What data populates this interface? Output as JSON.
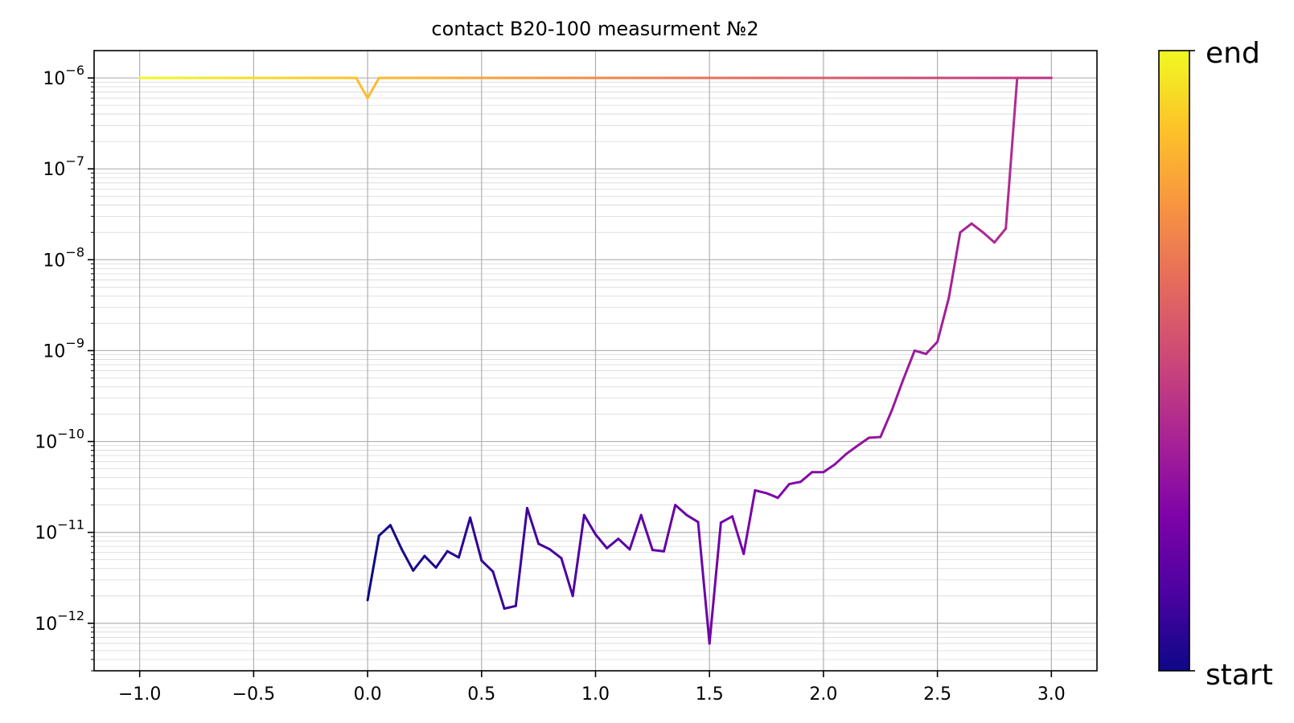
{
  "chart_data": {
    "type": "line",
    "title": "contact B20-100 measurment №2",
    "xlabel": "",
    "ylabel": "",
    "yscale": "log",
    "xlim": [
      -1.2,
      3.2
    ],
    "ylim": [
      3e-13,
      2e-06
    ],
    "grid": true,
    "minor_grid": true,
    "colormap": "plasma",
    "colors": {
      "start": "#0d0887",
      "end": "#f0f921",
      "grid": "#b0b0b0",
      "axis": "#000000"
    },
    "x_ticks": [
      {
        "value": -1.0,
        "label": "−1.0"
      },
      {
        "value": -0.5,
        "label": "−0.5"
      },
      {
        "value": 0.0,
        "label": "0.0"
      },
      {
        "value": 0.5,
        "label": "0.5"
      },
      {
        "value": 1.0,
        "label": "1.0"
      },
      {
        "value": 1.5,
        "label": "1.5"
      },
      {
        "value": 2.0,
        "label": "2.0"
      },
      {
        "value": 2.5,
        "label": "2.5"
      },
      {
        "value": 3.0,
        "label": "3.0"
      }
    ],
    "y_ticks": [
      {
        "exp": -6,
        "base": "10",
        "sup": "−6"
      },
      {
        "exp": -7,
        "base": "10",
        "sup": "−7"
      },
      {
        "exp": -8,
        "base": "10",
        "sup": "−8"
      },
      {
        "exp": -9,
        "base": "10",
        "sup": "−9"
      },
      {
        "exp": -10,
        "base": "10",
        "sup": "−10"
      },
      {
        "exp": -11,
        "base": "10",
        "sup": "−11"
      },
      {
        "exp": -12,
        "base": "10",
        "sup": "−12"
      }
    ],
    "colorbar": {
      "top_label": "end",
      "bottom_label": "start"
    },
    "series": [
      {
        "x": [
          0.0,
          0.05,
          0.1,
          0.15,
          0.2,
          0.25,
          0.3,
          0.35,
          0.4,
          0.45,
          0.5,
          0.55,
          0.6,
          0.65,
          0.7,
          0.75,
          0.8,
          0.85,
          0.9,
          0.95,
          1.0,
          1.05,
          1.1,
          1.15,
          1.2,
          1.25,
          1.3,
          1.35,
          1.4,
          1.45,
          1.5,
          1.55,
          1.6,
          1.65,
          1.7,
          1.75,
          1.8,
          1.85,
          1.9,
          1.95,
          2.0,
          2.05,
          2.1,
          2.15,
          2.2,
          2.25,
          2.3,
          2.35,
          2.4,
          2.45,
          2.5,
          2.55,
          2.6,
          2.65,
          2.7,
          2.75,
          2.8,
          2.85,
          2.9,
          2.95,
          3.0,
          2.95,
          2.9,
          2.85,
          2.8,
          2.75,
          2.7,
          2.65,
          2.6,
          2.55,
          2.5,
          2.45,
          2.4,
          2.35,
          2.3,
          2.25,
          2.2,
          2.15,
          2.1,
          2.05,
          2.0,
          1.95,
          1.9,
          1.85,
          1.8,
          1.75,
          1.7,
          1.65,
          1.6,
          1.55,
          1.5,
          1.45,
          1.4,
          1.35,
          1.3,
          1.25,
          1.2,
          1.15,
          1.1,
          1.05,
          1.0,
          0.95,
          0.9,
          0.85,
          0.8,
          0.75,
          0.7,
          0.65,
          0.6,
          0.55,
          0.5,
          0.45,
          0.4,
          0.35,
          0.3,
          0.25,
          0.2,
          0.15,
          0.1,
          0.05,
          0.0,
          -0.05,
          -0.1,
          -0.15,
          -0.2,
          -0.25,
          -0.3,
          -0.35,
          -0.4,
          -0.45,
          -0.5,
          -0.55,
          -0.6,
          -0.65,
          -0.7,
          -0.75,
          -0.8,
          -0.85,
          -0.9,
          -0.95,
          -1.0
        ],
        "y": [
          1.8e-12,
          9.2e-12,
          1.2e-11,
          6.5e-12,
          3.8e-12,
          5.5e-12,
          4.1e-12,
          6.2e-12,
          5.3e-12,
          1.45e-11,
          4.9e-12,
          3.7e-12,
          1.45e-12,
          1.55e-12,
          1.85e-11,
          7.5e-12,
          6.5e-12,
          5.2e-12,
          2e-12,
          1.55e-11,
          9.5e-12,
          6.7e-12,
          8.5e-12,
          6.5e-12,
          1.55e-11,
          6.4e-12,
          6.2e-12,
          2e-11,
          1.55e-11,
          1.3e-11,
          6e-13,
          1.28e-11,
          1.5e-11,
          5.8e-12,
          2.9e-11,
          2.7e-11,
          2.4e-11,
          3.4e-11,
          3.6e-11,
          4.6e-11,
          4.6e-11,
          5.6e-11,
          7.3e-11,
          9e-11,
          1.1e-10,
          1.12e-10,
          2.2e-10,
          4.8e-10,
          1e-09,
          9.2e-10,
          1.25e-09,
          3.8e-09,
          2e-08,
          2.5e-08,
          2e-08,
          1.55e-08,
          2.2e-08,
          1e-06,
          1e-06,
          1e-06,
          1e-06,
          1e-06,
          1e-06,
          1e-06,
          1e-06,
          1e-06,
          1e-06,
          1e-06,
          1e-06,
          1e-06,
          1e-06,
          1e-06,
          1e-06,
          1e-06,
          1e-06,
          1e-06,
          1e-06,
          1e-06,
          1e-06,
          1e-06,
          1e-06,
          1e-06,
          1e-06,
          1e-06,
          1e-06,
          1e-06,
          1e-06,
          1e-06,
          1e-06,
          1e-06,
          1e-06,
          1e-06,
          1e-06,
          1e-06,
          1e-06,
          1e-06,
          1e-06,
          1e-06,
          1e-06,
          1e-06,
          1e-06,
          1e-06,
          1e-06,
          1e-06,
          1e-06,
          1e-06,
          1e-06,
          1e-06,
          1e-06,
          1e-06,
          1e-06,
          1e-06,
          1e-06,
          1e-06,
          1e-06,
          1e-06,
          1e-06,
          1e-06,
          1e-06,
          1e-06,
          6e-07,
          1e-06,
          1e-06,
          1e-06,
          1e-06,
          1e-06,
          1e-06,
          1e-06,
          1e-06,
          1e-06,
          1e-06,
          1e-06,
          1e-06,
          1e-06,
          1e-06,
          1e-06,
          1e-06,
          1e-06,
          1e-06,
          1e-06,
          1e-06
        ]
      }
    ]
  }
}
